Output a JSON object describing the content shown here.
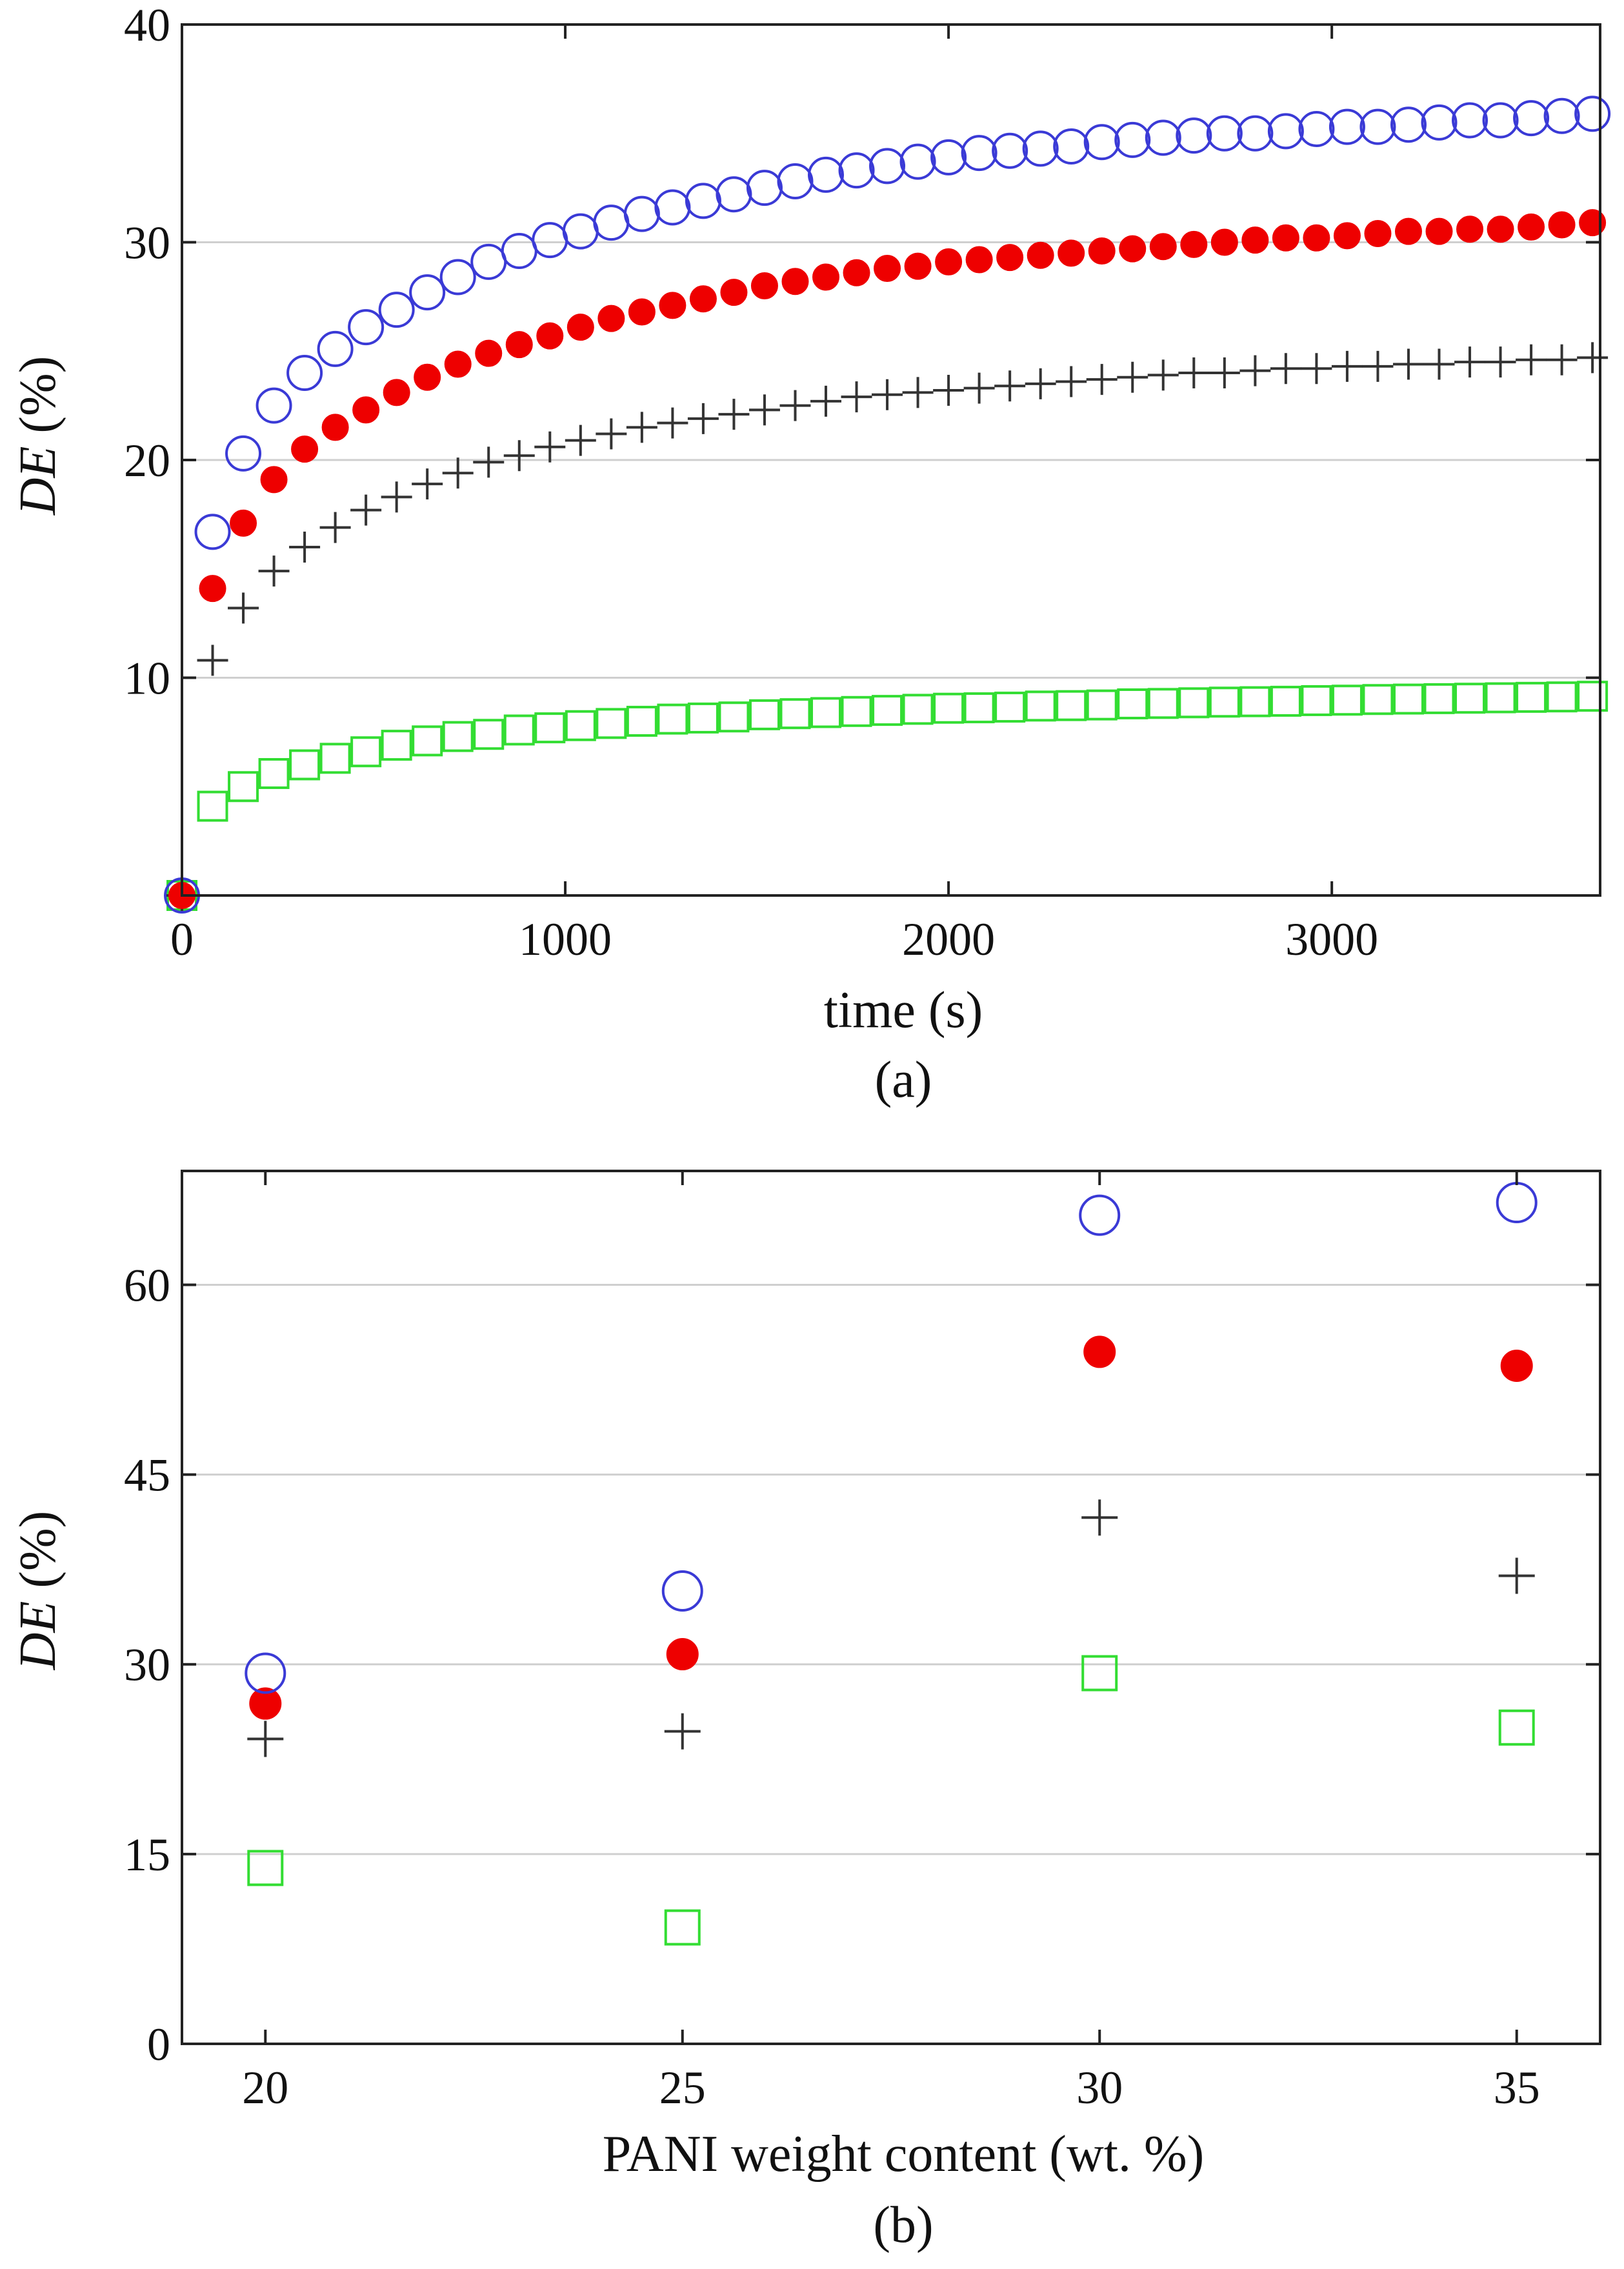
{
  "colors": {
    "open_circle": "#3a3ad6",
    "filled_circle": "#ee0000",
    "plus": "#333333",
    "square": "#33dd33",
    "grid": "#cfcfcf",
    "axis": "#222222"
  },
  "chart_data": [
    {
      "type": "scatter",
      "panel_label": "(a)",
      "xlabel": "time (s)",
      "ylabel_italic": "DE",
      "ylabel_rest": " (%)",
      "xlim": [
        0,
        3700
      ],
      "ylim": [
        0,
        40
      ],
      "xticks": [
        0,
        1000,
        2000,
        3000
      ],
      "yticks": [
        10,
        20,
        30,
        40
      ],
      "grid": "horizontal",
      "x": [
        0,
        80,
        160,
        240,
        320,
        400,
        480,
        560,
        640,
        720,
        800,
        880,
        960,
        1040,
        1120,
        1200,
        1280,
        1360,
        1440,
        1520,
        1600,
        1680,
        1760,
        1840,
        1920,
        2000,
        2080,
        2160,
        2240,
        2320,
        2400,
        2480,
        2560,
        2640,
        2720,
        2800,
        2880,
        2960,
        3040,
        3120,
        3200,
        3280,
        3360,
        3440,
        3520,
        3600,
        3680
      ],
      "series": [
        {
          "name": "open circles (blue)",
          "marker": "open_circle",
          "values": [
            0,
            16.7,
            20.3,
            22.5,
            24.0,
            25.1,
            26.1,
            26.9,
            27.7,
            28.4,
            29.1,
            29.6,
            30.1,
            30.5,
            30.9,
            31.3,
            31.6,
            31.9,
            32.2,
            32.5,
            32.8,
            33.1,
            33.3,
            33.5,
            33.7,
            33.9,
            34.1,
            34.2,
            34.3,
            34.4,
            34.6,
            34.7,
            34.8,
            34.9,
            35.0,
            35.0,
            35.1,
            35.2,
            35.3,
            35.3,
            35.4,
            35.5,
            35.6,
            35.6,
            35.7,
            35.8,
            35.9
          ]
        },
        {
          "name": "filled circles (red)",
          "marker": "filled_circle",
          "values": [
            0,
            14.1,
            17.1,
            19.1,
            20.5,
            21.5,
            22.3,
            23.1,
            23.8,
            24.4,
            24.9,
            25.3,
            25.7,
            26.1,
            26.5,
            26.8,
            27.1,
            27.4,
            27.7,
            28.0,
            28.2,
            28.4,
            28.6,
            28.8,
            28.9,
            29.1,
            29.2,
            29.3,
            29.4,
            29.5,
            29.6,
            29.7,
            29.8,
            29.9,
            30.0,
            30.1,
            30.2,
            30.2,
            30.3,
            30.4,
            30.5,
            30.5,
            30.6,
            30.6,
            30.7,
            30.8,
            30.9
          ]
        },
        {
          "name": "plus (black)",
          "marker": "plus",
          "values": [
            0,
            10.8,
            13.2,
            14.9,
            16.0,
            16.9,
            17.7,
            18.3,
            18.9,
            19.4,
            19.9,
            20.2,
            20.6,
            20.9,
            21.2,
            21.5,
            21.7,
            21.9,
            22.1,
            22.3,
            22.5,
            22.7,
            22.9,
            23.0,
            23.1,
            23.2,
            23.3,
            23.4,
            23.5,
            23.6,
            23.7,
            23.8,
            23.9,
            24.0,
            24.0,
            24.1,
            24.2,
            24.2,
            24.3,
            24.3,
            24.4,
            24.4,
            24.5,
            24.5,
            24.6,
            24.6,
            24.7
          ]
        },
        {
          "name": "open squares (green)",
          "marker": "square",
          "values": [
            0,
            4.1,
            5.0,
            5.6,
            6.0,
            6.3,
            6.6,
            6.9,
            7.1,
            7.3,
            7.4,
            7.6,
            7.7,
            7.8,
            7.9,
            8.0,
            8.1,
            8.15,
            8.2,
            8.3,
            8.35,
            8.4,
            8.45,
            8.5,
            8.55,
            8.6,
            8.62,
            8.65,
            8.7,
            8.72,
            8.75,
            8.8,
            8.82,
            8.85,
            8.88,
            8.9,
            8.92,
            8.95,
            8.97,
            9.0,
            9.02,
            9.04,
            9.06,
            9.08,
            9.1,
            9.12,
            9.15
          ]
        }
      ]
    },
    {
      "type": "scatter",
      "panel_label": "(b)",
      "xlabel": "PANI weight content (wt. %)",
      "ylabel_italic": "DE",
      "ylabel_rest": " (%)",
      "xlim": [
        19,
        36
      ],
      "ylim": [
        0,
        69
      ],
      "xticks": [
        20,
        25,
        30,
        35
      ],
      "yticks": [
        0,
        15,
        30,
        45,
        60
      ],
      "grid": "horizontal",
      "x": [
        20,
        25,
        30,
        35
      ],
      "series": [
        {
          "name": "open circles (blue)",
          "marker": "open_circle",
          "values": [
            29.3,
            35.8,
            65.5,
            66.5
          ]
        },
        {
          "name": "filled circles (red)",
          "marker": "filled_circle",
          "values": [
            26.9,
            30.8,
            54.7,
            53.6
          ]
        },
        {
          "name": "plus (black)",
          "marker": "plus",
          "values": [
            24.1,
            24.7,
            41.6,
            37.0
          ]
        },
        {
          "name": "open squares (green)",
          "marker": "square",
          "values": [
            13.9,
            9.2,
            29.3,
            25.0
          ]
        }
      ]
    }
  ]
}
